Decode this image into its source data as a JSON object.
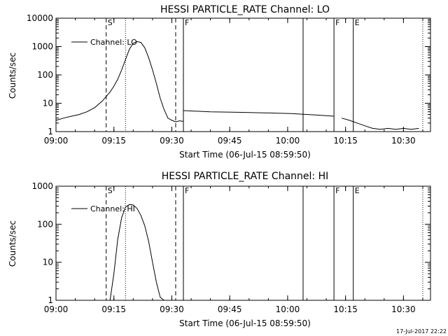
{
  "chart_data": [
    {
      "type": "line",
      "title": "HESSI PARTICLE_RATE Channel: LO",
      "xlabel": "Start Time (06-Jul-15 08:59:50)",
      "ylabel": "Counts/sec",
      "y_scale": "log",
      "xlim": [
        "09:00",
        "10:37"
      ],
      "ylim": [
        1,
        10000
      ],
      "x_ticks": [
        "09:00",
        "09:15",
        "09:30",
        "09:45",
        "10:00",
        "10:15",
        "10:30"
      ],
      "y_ticks": [
        "1",
        "10",
        "100",
        "1000",
        "10000"
      ],
      "legend": {
        "entry": "Channel: LO",
        "placement": "top-left"
      },
      "series": [
        {
          "name": "Channel: LO",
          "x": [
            "09:00",
            "09:02",
            "09:04",
            "09:06",
            "09:08",
            "09:10",
            "09:12",
            "09:14",
            "09:15",
            "09:16",
            "09:17",
            "09:18",
            "09:19",
            "09:20",
            "09:21",
            "09:22",
            "09:23",
            "09:24",
            "09:25",
            "09:26",
            "09:27",
            "09:28",
            "09:29",
            "09:30",
            "09:31",
            "09:32",
            "09:33"
          ],
          "y": [
            2.5,
            3,
            3.5,
            4,
            5,
            7,
            12,
            25,
            40,
            70,
            150,
            350,
            800,
            1300,
            1500,
            1400,
            900,
            400,
            150,
            50,
            15,
            6,
            3,
            2.5,
            2.2,
            2.4,
            2.3
          ]
        },
        {
          "name": "",
          "x": [
            "09:33",
            "09:40",
            "09:47",
            "09:54",
            "10:01",
            "10:08",
            "10:12"
          ],
          "y": [
            5.5,
            5,
            4.8,
            4.6,
            4.3,
            3.8,
            3.5
          ]
        },
        {
          "name": "",
          "x": [
            "10:14",
            "10:16",
            "10:18",
            "10:20",
            "10:22",
            "10:24",
            "10:26",
            "10:28",
            "10:30",
            "10:32",
            "10:34"
          ],
          "y": [
            3,
            2.5,
            2,
            1.6,
            1.3,
            1.2,
            1.3,
            1.2,
            1.3,
            1.2,
            1.3
          ]
        }
      ],
      "event_markers": [
        {
          "label": "S",
          "time": "09:13",
          "style": "dashed"
        },
        {
          "label": "",
          "time": "09:18",
          "style": "dotted"
        },
        {
          "label": "",
          "time": "09:31",
          "style": "dashed"
        },
        {
          "label": "F",
          "time": "09:33",
          "style": "solid"
        },
        {
          "label": "",
          "time": "10:04",
          "style": "solid"
        },
        {
          "label": "F",
          "time": "10:12",
          "style": "solid"
        },
        {
          "label": "E",
          "time": "10:17",
          "style": "solid"
        },
        {
          "label": "",
          "time": "10:35",
          "style": "dotted"
        }
      ]
    },
    {
      "type": "line",
      "title": "HESSI PARTICLE_RATE Channel: HI",
      "xlabel": "Start Time (06-Jul-15 08:59:50)",
      "ylabel": "Counts/sec",
      "y_scale": "log",
      "xlim": [
        "09:00",
        "10:37"
      ],
      "ylim": [
        1,
        1000
      ],
      "x_ticks": [
        "09:00",
        "09:15",
        "09:30",
        "09:45",
        "10:00",
        "10:15",
        "10:30"
      ],
      "y_ticks": [
        "1",
        "10",
        "100",
        "1000"
      ],
      "legend": {
        "entry": "Channel: HI",
        "placement": "top-left"
      },
      "series": [
        {
          "name": "Channel: HI",
          "x": [
            "09:14",
            "09:15",
            "09:16",
            "09:17",
            "09:18",
            "09:19",
            "09:20",
            "09:21",
            "09:22",
            "09:23",
            "09:24",
            "09:25",
            "09:26",
            "09:27",
            "09:28"
          ],
          "y": [
            1,
            5,
            40,
            150,
            280,
            330,
            320,
            260,
            170,
            90,
            35,
            10,
            3,
            1.2,
            1
          ]
        }
      ],
      "event_markers": [
        {
          "label": "S",
          "time": "09:13",
          "style": "dashed"
        },
        {
          "label": "",
          "time": "09:18",
          "style": "dotted"
        },
        {
          "label": "",
          "time": "09:31",
          "style": "dashed"
        },
        {
          "label": "F",
          "time": "09:33",
          "style": "solid"
        },
        {
          "label": "",
          "time": "10:04",
          "style": "solid"
        },
        {
          "label": "F",
          "time": "10:12",
          "style": "solid"
        },
        {
          "label": "E",
          "time": "10:17",
          "style": "solid"
        },
        {
          "label": "",
          "time": "10:35",
          "style": "dotted"
        }
      ]
    }
  ],
  "footer": {
    "timestamp": "17-Jul-2017 22:22"
  }
}
